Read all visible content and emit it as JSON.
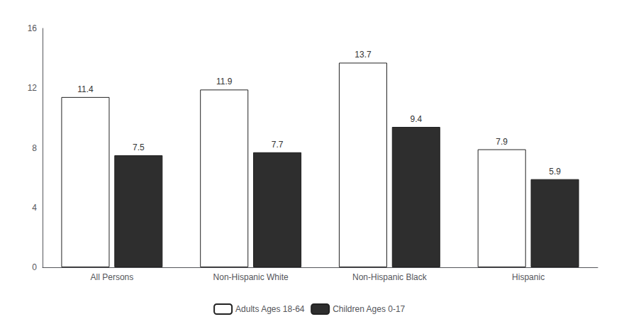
{
  "chart_data": {
    "type": "bar",
    "categories": [
      "All Persons",
      "Non-Hispanic White",
      "Non-Hispanic Black",
      "Hispanic"
    ],
    "series": [
      {
        "name": "Adults Ages 18-64",
        "color": "#ffffff",
        "values": [
          11.4,
          11.9,
          13.7,
          7.9
        ]
      },
      {
        "name": "Children Ages 0-17",
        "color": "#2e2e2e",
        "values": [
          7.5,
          7.7,
          9.4,
          5.9
        ]
      }
    ],
    "ylim": [
      0,
      16
    ],
    "yticks": [
      0,
      4,
      8,
      12,
      16
    ],
    "grid": false,
    "legend": "bottom",
    "data_labels": true
  }
}
